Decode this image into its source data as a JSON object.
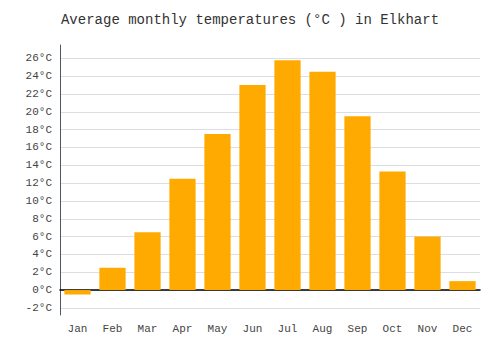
{
  "chart_data": {
    "type": "bar",
    "title": "Average monthly temperatures (°C ) in Elkhart",
    "categories": [
      "Jan",
      "Feb",
      "Mar",
      "Apr",
      "May",
      "Jun",
      "Jul",
      "Aug",
      "Sep",
      "Oct",
      "Nov",
      "Dec"
    ],
    "values": [
      -0.5,
      2.5,
      6.5,
      12.5,
      17.5,
      23.0,
      25.8,
      24.5,
      19.5,
      13.3,
      6.0,
      1.0
    ],
    "color": "#FFAA00",
    "ylim": [
      -2.8,
      27.5
    ],
    "yticks": [
      {
        "value": -2,
        "label": "-2°C"
      },
      {
        "value": 0,
        "label": "0°C"
      },
      {
        "value": 2,
        "label": "2°C"
      },
      {
        "value": 4,
        "label": "4°C"
      },
      {
        "value": 6,
        "label": "6°C"
      },
      {
        "value": 8,
        "label": "8°C"
      },
      {
        "value": 10,
        "label": "10°C"
      },
      {
        "value": 12,
        "label": "12°C"
      },
      {
        "value": 14,
        "label": "14°C"
      },
      {
        "value": 16,
        "label": "16°C"
      },
      {
        "value": 18,
        "label": "18°C"
      },
      {
        "value": 20,
        "label": "20°C"
      },
      {
        "value": 22,
        "label": "22°C"
      },
      {
        "value": 24,
        "label": "24°C"
      },
      {
        "value": 26,
        "label": "26°C"
      }
    ],
    "grid": true
  }
}
